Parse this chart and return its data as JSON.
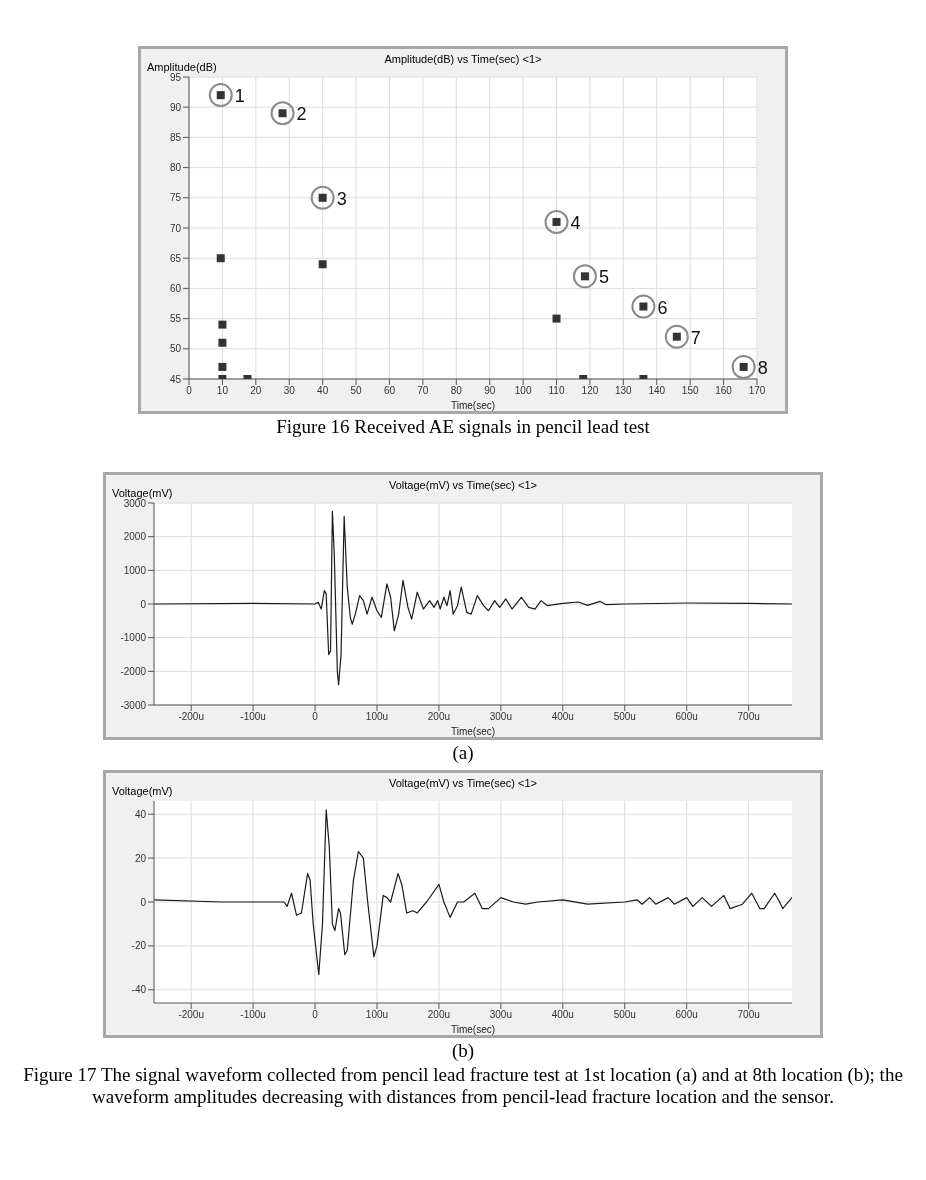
{
  "chart_data": [
    {
      "type": "scatter",
      "title": "Amplitude(dB) vs Time(sec) <1>",
      "ylabel": "Amplitude(dB)",
      "xlabel": "Time(sec)",
      "xlim": [
        0,
        170
      ],
      "ylim": [
        45,
        95
      ],
      "xticks": [
        0,
        10,
        20,
        30,
        40,
        50,
        60,
        70,
        80,
        90,
        100,
        110,
        120,
        130,
        140,
        150,
        160,
        170
      ],
      "yticks": [
        45,
        50,
        55,
        60,
        65,
        70,
        75,
        80,
        85,
        90,
        95
      ],
      "grid": true,
      "marker": "square",
      "series": [
        {
          "color": "#333333",
          "x": [
            9.5,
            28,
            40,
            110,
            118.5,
            136,
            146,
            166,
            9.5,
            10,
            10,
            10,
            10,
            17.5,
            40,
            110,
            118,
            136
          ],
          "values": [
            92,
            89,
            75,
            71,
            62,
            57,
            52,
            47,
            65,
            54,
            51,
            47,
            45,
            45,
            64,
            55,
            45,
            45
          ]
        }
      ],
      "annotations": [
        {
          "text": "1",
          "x": 9.5,
          "y": 92
        },
        {
          "text": "2",
          "x": 28,
          "y": 89
        },
        {
          "text": "3",
          "x": 40,
          "y": 75
        },
        {
          "text": "4",
          "x": 110,
          "y": 71
        },
        {
          "text": "5",
          "x": 118.5,
          "y": 62
        },
        {
          "text": "6",
          "x": 136,
          "y": 57
        },
        {
          "text": "7",
          "x": 146,
          "y": 52
        },
        {
          "text": "8",
          "x": 166,
          "y": 47
        },
        "Figure 16   Received AE signals in pencil lead test"
      ]
    },
    {
      "type": "line",
      "title": "Voltage(mV) vs Time(sec) <1>",
      "ylabel": "Voltage(mV)",
      "xlabel": "Time(sec)",
      "xlim": [
        -260,
        770
      ],
      "ylim": [
        -3000,
        3000
      ],
      "xticks": [
        {
          "value": -200,
          "label": "-200u"
        },
        {
          "value": -100,
          "label": "-100u"
        },
        0,
        {
          "value": 100,
          "label": "100u"
        },
        {
          "value": 200,
          "label": "200u"
        },
        {
          "value": 300,
          "label": "300u"
        },
        {
          "value": 400,
          "label": "400u"
        },
        {
          "value": 500,
          "label": "500u"
        },
        {
          "value": 600,
          "label": "600u"
        },
        {
          "value": 700,
          "label": "700u"
        }
      ],
      "yticks": [
        -3000,
        -2000,
        -1000,
        0,
        1000,
        2000,
        3000
      ],
      "grid": true,
      "marker": "none",
      "line_style": "solid",
      "series": [
        {
          "color": "#1a1a1a",
          "x": [
            -260,
            -100,
            0,
            5,
            10,
            15,
            18,
            22,
            25,
            28,
            31,
            36,
            38,
            42,
            47,
            52,
            57,
            60,
            65,
            72,
            78,
            84,
            92,
            100,
            107,
            116,
            122,
            128,
            135,
            142,
            150,
            156,
            165,
            175,
            185,
            192,
            198,
            202,
            208,
            213,
            218,
            223,
            230,
            236,
            245,
            252,
            262,
            272,
            280,
            290,
            298,
            308,
            318,
            333,
            345,
            355,
            365,
            375,
            400,
            425,
            440,
            460,
            470,
            500,
            600,
            700,
            770
          ],
          "values": [
            0,
            20,
            0,
            50,
            -150,
            400,
            300,
            -1500,
            -1400,
            2750,
            1500,
            -2000,
            -2400,
            -1500,
            2600,
            500,
            -400,
            -600,
            -300,
            250,
            100,
            -300,
            200,
            -200,
            -400,
            600,
            200,
            -800,
            -300,
            700,
            -100,
            -450,
            350,
            -150,
            100,
            -100,
            100,
            -150,
            200,
            -50,
            400,
            -300,
            -50,
            500,
            -250,
            -300,
            250,
            -50,
            -200,
            100,
            -100,
            150,
            -150,
            200,
            -100,
            -150,
            100,
            -50,
            20,
            60,
            -40,
            80,
            -20,
            0,
            30,
            20,
            0
          ]
        }
      ],
      "annotations": [
        "(a)"
      ]
    },
    {
      "type": "line",
      "title": "Voltage(mV) vs Time(sec) <1>",
      "ylabel": "Voltage(mV)",
      "xlabel": "Time(sec)",
      "xlim": [
        -260,
        770
      ],
      "ylim": [
        -46,
        46
      ],
      "xticks": [
        {
          "value": -200,
          "label": "-200u"
        },
        {
          "value": -100,
          "label": "-100u"
        },
        0,
        {
          "value": 100,
          "label": "100u"
        },
        {
          "value": 200,
          "label": "200u"
        },
        {
          "value": 300,
          "label": "300u"
        },
        {
          "value": 400,
          "label": "400u"
        },
        {
          "value": 500,
          "label": "500u"
        },
        {
          "value": 600,
          "label": "600u"
        },
        {
          "value": 700,
          "label": "700u"
        }
      ],
      "yticks": [
        -40,
        -20,
        0,
        20,
        40
      ],
      "grid": true,
      "marker": "none",
      "line_style": "solid",
      "series": [
        {
          "color": "#1a1a1a",
          "x": [
            -260,
            -150,
            -50,
            -45,
            -38,
            -30,
            -22,
            -12,
            -8,
            -3,
            6,
            12,
            18,
            23,
            28,
            32,
            38,
            41,
            48,
            52,
            62,
            70,
            78,
            85,
            95,
            100,
            110,
            116,
            122,
            134,
            140,
            148,
            158,
            165,
            180,
            200,
            208,
            218,
            230,
            240,
            258,
            270,
            280,
            300,
            320,
            340,
            360,
            400,
            440,
            500,
            520,
            528,
            540,
            550,
            570,
            580,
            600,
            610,
            625,
            640,
            660,
            670,
            690,
            705,
            718,
            725,
            742,
            750,
            755,
            770
          ],
          "values": [
            1,
            0,
            0,
            -2,
            4,
            -6,
            -5,
            13,
            10,
            -10,
            -33,
            -10,
            42,
            25,
            -10,
            -13,
            -3,
            -5,
            -24,
            -22,
            10,
            23,
            20,
            0,
            -25,
            -20,
            3,
            2,
            0,
            13,
            8,
            -5,
            -4,
            -5,
            0,
            8,
            0,
            -7,
            0,
            0,
            4,
            -3,
            -3,
            2,
            0,
            -1,
            0,
            1,
            -1,
            0,
            1,
            -1,
            2,
            -1,
            2,
            -1,
            2,
            -2,
            2,
            -2,
            3,
            -3,
            -1,
            4,
            -3,
            -3,
            4,
            0,
            -3,
            2
          ]
        }
      ],
      "annotations": [
        "(b)",
        "Figure 17 The signal waveform collected from pencil lead fracture test at 1st location (a) and at 8th location (b); the waveform amplitudes decreasing with distances from pencil-lead fracture location and the sensor."
      ]
    }
  ]
}
